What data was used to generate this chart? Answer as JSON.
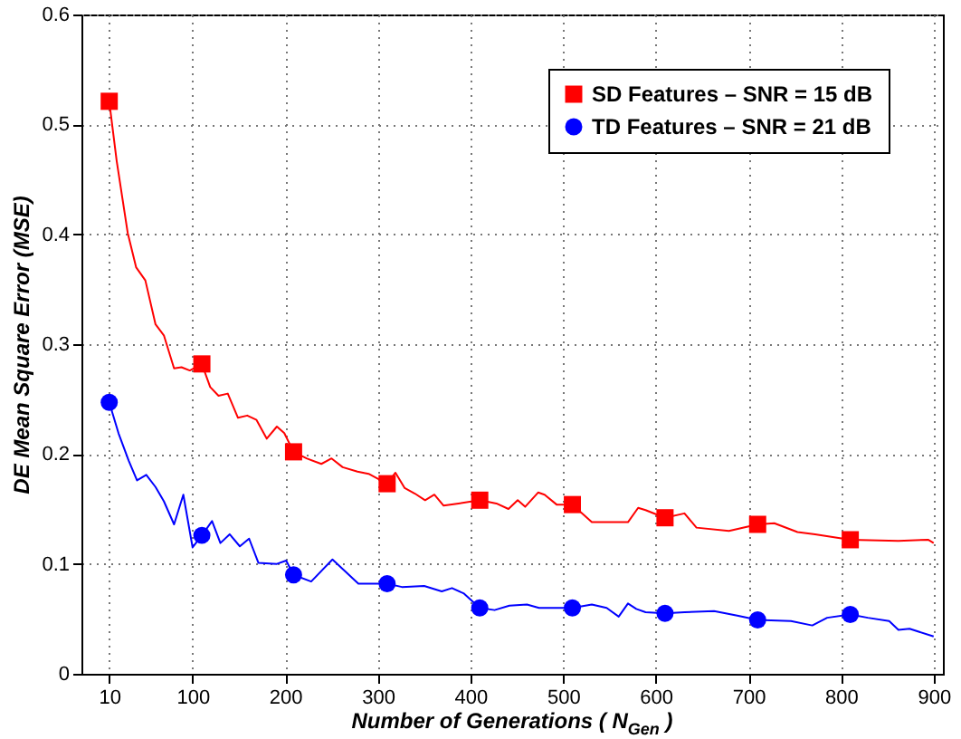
{
  "chart_data": {
    "type": "line",
    "xlabel": "Number of Generations ( N$_{Gen}$ )",
    "ylabel": "DE Mean Square Error (MSE)",
    "xlim": [
      -20,
      910
    ],
    "xticks": [
      10,
      100,
      200,
      300,
      400,
      500,
      600,
      700,
      800,
      900
    ],
    "ylim": [
      0,
      0.6
    ],
    "yticks": [
      0,
      0.1,
      0.2,
      0.3,
      0.4,
      0.5,
      0.6
    ],
    "grid": true,
    "legend": "top right",
    "series": [
      {
        "type": "line",
        "color": "#ff0000",
        "x": [
          10,
          18,
          30,
          39,
          49,
          60,
          69,
          80,
          88,
          97,
          110,
          119,
          128,
          138,
          149,
          159,
          169,
          180,
          191,
          199,
          209,
          223,
          239,
          250,
          262,
          278,
          290,
          310,
          319,
          329,
          340,
          351,
          361,
          371,
          387,
          410,
          428,
          441,
          451,
          459,
          473,
          480,
          493,
          510,
          531,
          570,
          581,
          589,
          610,
          631,
          644,
          679,
          710,
          728,
          753,
          772,
          810,
          862,
          894,
          900
        ],
        "values": [
          0.521,
          0.467,
          0.401,
          0.37,
          0.358,
          0.318,
          0.308,
          0.278,
          0.279,
          0.276,
          0.282,
          0.261,
          0.253,
          0.255,
          0.233,
          0.235,
          0.231,
          0.214,
          0.225,
          0.219,
          0.202,
          0.196,
          0.191,
          0.196,
          0.188,
          0.184,
          0.182,
          0.173,
          0.183,
          0.169,
          0.164,
          0.158,
          0.163,
          0.153,
          0.155,
          0.158,
          0.155,
          0.15,
          0.158,
          0.152,
          0.165,
          0.163,
          0.154,
          0.154,
          0.138,
          0.138,
          0.151,
          0.149,
          0.142,
          0.146,
          0.133,
          0.13,
          0.136,
          0.137,
          0.129,
          0.127,
          0.122,
          0.121,
          0.122,
          0.119
        ]
      },
      {
        "type": "line",
        "color": "#0000ff",
        "x": [
          10,
          20,
          31,
          40,
          50,
          60,
          69,
          80,
          90,
          100,
          110,
          121,
          130,
          140,
          151,
          161,
          171,
          191,
          201,
          209,
          228,
          251,
          279,
          290,
          310,
          326,
          350,
          369,
          380,
          393,
          410,
          426,
          442,
          461,
          474,
          490,
          510,
          531,
          547,
          560,
          570,
          579,
          589,
          610,
          631,
          663,
          688,
          710,
          746,
          769,
          785,
          810,
          829,
          852,
          862,
          874,
          900
        ],
        "values": [
          0.247,
          0.219,
          0.194,
          0.176,
          0.181,
          0.17,
          0.157,
          0.136,
          0.163,
          0.115,
          0.126,
          0.139,
          0.119,
          0.127,
          0.116,
          0.123,
          0.101,
          0.1,
          0.103,
          0.09,
          0.084,
          0.104,
          0.082,
          0.082,
          0.082,
          0.079,
          0.08,
          0.075,
          0.078,
          0.073,
          0.06,
          0.058,
          0.062,
          0.063,
          0.06,
          0.06,
          0.06,
          0.063,
          0.06,
          0.052,
          0.064,
          0.059,
          0.056,
          0.055,
          0.056,
          0.057,
          0.053,
          0.049,
          0.048,
          0.044,
          0.051,
          0.054,
          0.051,
          0.048,
          0.04,
          0.041,
          0.034
        ]
      },
      {
        "type": "scatter",
        "name": "SD Features – SNR = 15 dB",
        "color": "#ff0000",
        "marker": "square",
        "x": [
          10,
          110,
          209,
          310,
          410,
          510,
          610,
          710,
          810
        ],
        "values": [
          0.521,
          0.282,
          0.202,
          0.173,
          0.158,
          0.154,
          0.142,
          0.136,
          0.122
        ]
      },
      {
        "type": "scatter",
        "name": "TD Features – SNR = 21 dB",
        "color": "#0000ff",
        "marker": "circle",
        "x": [
          10,
          110,
          209,
          310,
          410,
          510,
          610,
          710,
          810
        ],
        "values": [
          0.247,
          0.126,
          0.09,
          0.082,
          0.06,
          0.06,
          0.055,
          0.049,
          0.054
        ]
      }
    ]
  }
}
